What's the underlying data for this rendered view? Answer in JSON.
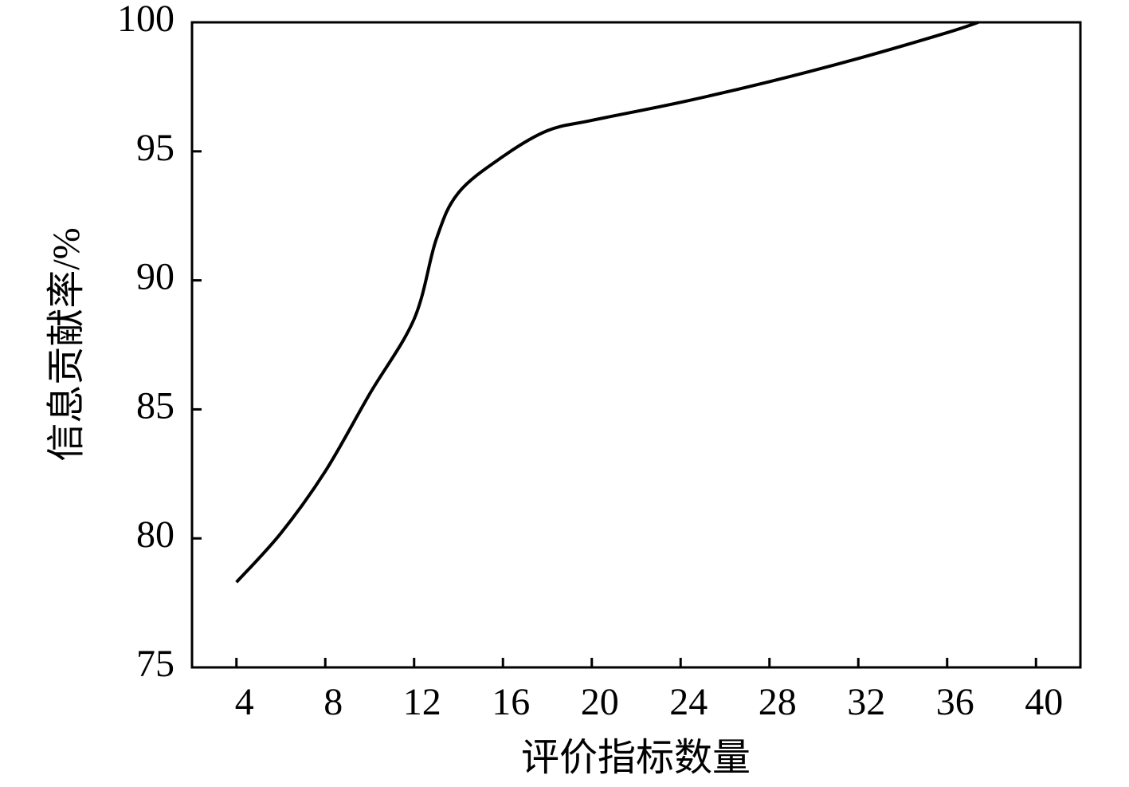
{
  "chart_data": {
    "type": "line",
    "xlabel": "评价指标数量",
    "ylabel": "信息贡献率/%",
    "x": [
      4,
      6,
      8,
      10,
      12,
      13,
      14,
      16,
      18,
      20,
      24,
      28,
      32,
      36,
      37.4
    ],
    "series": [
      {
        "name": "信息贡献率",
        "color": "#000000",
        "values": [
          78.3,
          80.2,
          82.6,
          85.6,
          88.5,
          91.6,
          93.4,
          94.8,
          95.8,
          96.2,
          96.9,
          97.7,
          98.6,
          99.6,
          100
        ]
      }
    ],
    "xlim": [
      2,
      42
    ],
    "ylim": [
      75,
      100
    ],
    "xticks": [
      4,
      8,
      12,
      16,
      20,
      24,
      28,
      32,
      36,
      40
    ],
    "yticks": [
      75,
      80,
      85,
      90,
      95,
      100
    ],
    "grid": false
  }
}
